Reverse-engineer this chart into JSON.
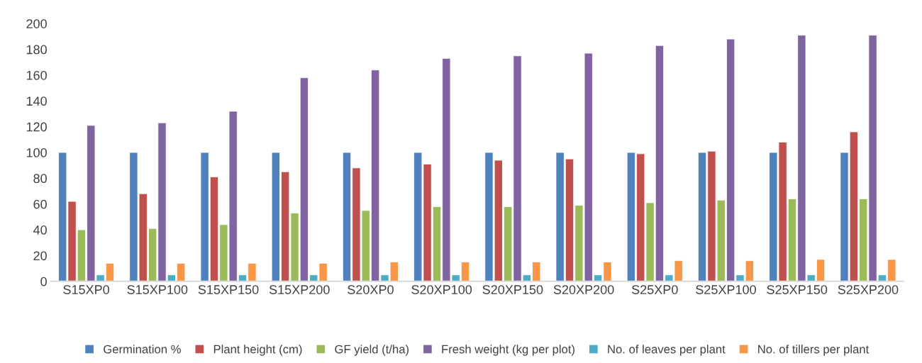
{
  "chart_data": {
    "type": "bar",
    "categories": [
      "S15XP0",
      "S15XP100",
      "S15XP150",
      "S15XP200",
      "S20XP0",
      "S20XP100",
      "S20XP150",
      "S20XP200",
      "S25XP0",
      "S25XP100",
      "S25XP150",
      "S25XP200"
    ],
    "series": [
      {
        "name": "Germination %",
        "color": "#4f81bd",
        "values": [
          100,
          100,
          100,
          100,
          100,
          100,
          100,
          100,
          100,
          100,
          100,
          100
        ]
      },
      {
        "name": "Plant height (cm)",
        "color": "#c0504d",
        "values": [
          62,
          68,
          81,
          85,
          88,
          91,
          94,
          95,
          99,
          101,
          108,
          116
        ]
      },
      {
        "name": "GF yield (t/ha)",
        "color": "#9bbb59",
        "values": [
          40,
          41,
          44,
          53,
          55,
          58,
          58,
          59,
          61,
          63,
          64,
          64
        ]
      },
      {
        "name": "Fresh weight (kg per plot)",
        "color": "#8064a2",
        "values": [
          121,
          123,
          132,
          158,
          164,
          173,
          175,
          177,
          183,
          188,
          191,
          191
        ]
      },
      {
        "name": "No. of leaves per plant",
        "color": "#4bacc6",
        "values": [
          5,
          5,
          5,
          5,
          5,
          5,
          5,
          5,
          5,
          5,
          5,
          5
        ]
      },
      {
        "name": "No. of tillers per plant",
        "color": "#f79646",
        "values": [
          14,
          14,
          14,
          14,
          15,
          15,
          15,
          15,
          16,
          16,
          17,
          17
        ]
      }
    ],
    "ylim": [
      0,
      200
    ],
    "yticks": [
      0,
      20,
      40,
      60,
      80,
      100,
      120,
      140,
      160,
      180,
      200
    ],
    "grid": false,
    "legend": "bottom"
  }
}
